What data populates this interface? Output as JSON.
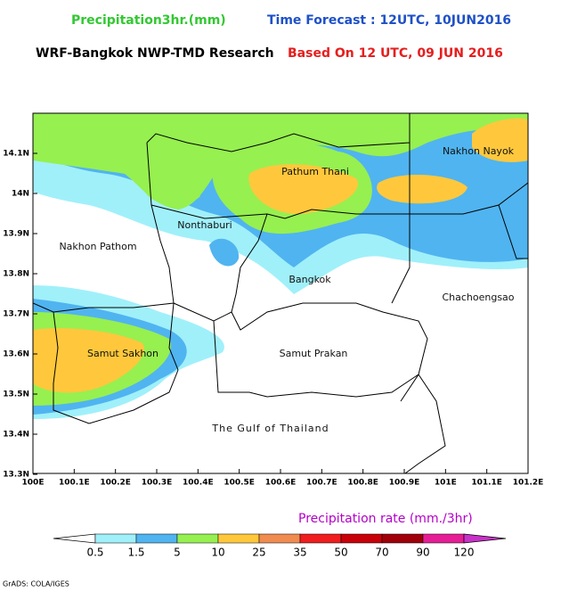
{
  "header": {
    "title": "Precipitation3hr.(mm)",
    "forecast": "Time Forecast : 12UTC, 10JUN2016",
    "model": "WRF-Bangkok NWP-TMD Research",
    "based_on": "Based On 12 UTC, 09 JUN 2016"
  },
  "map": {
    "places": [
      "Pathum Thani",
      "Nakhon Nayok",
      "Nonthaburi",
      "Nakhon Pathom",
      "Bangkok",
      "Chachoengsao",
      "Samut Sakhon",
      "Samut Prakan",
      "The Gulf of Thailand"
    ],
    "lat_labels": [
      "14.1N",
      "14N",
      "13.9N",
      "13.8N",
      "13.7N",
      "13.6N",
      "13.5N",
      "13.4N",
      "13.3N"
    ],
    "lon_labels": [
      "100E",
      "100.1E",
      "100.2E",
      "100.3E",
      "100.4E",
      "100.5E",
      "100.6E",
      "100.7E",
      "100.8E",
      "100.9E",
      "101E",
      "101.1E",
      "101.2E"
    ]
  },
  "legend": {
    "title": "Precipitation rate (mm./3hr)",
    "labels": [
      "0.5",
      "1.5",
      "5",
      "10",
      "25",
      "35",
      "50",
      "70",
      "90",
      "120"
    ],
    "colors": [
      "#ffffff",
      "#a0f0fa",
      "#50b4f0",
      "#96f050",
      "#ffc83c",
      "#f08c50",
      "#f01e1e",
      "#c8000a",
      "#a0000a",
      "#e61e96",
      "#c832c8"
    ]
  },
  "footer": "GrADS: COLA/IGES"
}
